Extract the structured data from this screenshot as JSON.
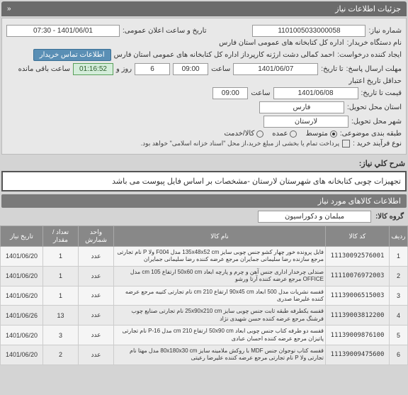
{
  "header": {
    "title": "جزئیات اطلاعات نیاز",
    "chev": "«"
  },
  "info": {
    "need_no_lbl": "شماره نیاز:",
    "need_no": "1101005033000058",
    "ann_lbl": "تاریخ و ساعت اعلان عمومی:",
    "ann_val": "1401/06/01 - 07:30",
    "org_lbl": "نام دستگاه خریدار:",
    "org_val": "اداره کل کتابخانه های عمومی استان فارس",
    "req_lbl": "ایجاد کننده درخواست:",
    "req_val": "احمد  کمالی دشت ارژنه  کارپرداز اداره کل کتابخانه های عمومی استان فارس",
    "contact_btn": "اطلاعات تماس خریدار",
    "deadline_lbl": "مهلت ارسال پاسخ:",
    "deadline_ta": "تا تاریخ:",
    "deadline_date": "1401/06/07",
    "deadline_time_lbl": "ساعت",
    "deadline_time": "09:00",
    "days_lbl": "روز و",
    "days_val": "6",
    "remain_lbl": "ساعت باقی مانده",
    "remain_val": "01:16:52",
    "valid_lbl": "حداقل تاریخ اعتبار",
    "valid_sub": "قیمت تا تاریخ:",
    "valid_date": "1401/06/08",
    "valid_time": "09:00",
    "prov_lbl": "استان محل تحویل:",
    "prov_val": "فارس",
    "city_lbl": "شهر محل تحویل:",
    "city_val": "لارستان",
    "cat_lbl": "طبقه بندی موضوعی:",
    "cat_opts": [
      {
        "label": "متوسط",
        "sel": true
      },
      {
        "label": "عمده",
        "sel": false
      },
      {
        "label": "کالا/خدمت",
        "sel": false
      }
    ],
    "proc_lbl": "نوع فرآیند خرید :",
    "pay_note": "پرداخت تمام یا بخشی از مبلغ خرید،از محل \"اسناد خزانه اسلامی\" خواهد بود."
  },
  "desc": {
    "lbl": "شرح کلي نياز:",
    "text": "تجهیزات چوبی کتابخانه های شهرستان لارستان -مشخصات بر اساس فایل پیوست می باشد"
  },
  "items_hdr": "اطلاعات کالاهای مورد نیاز",
  "group": {
    "lbl": "گروه کالا:",
    "val": "مبلمان و دکوراسیون"
  },
  "table": {
    "cols": [
      "ردیف",
      "کد کالا",
      "نام کالا",
      "واحد شمارش",
      "تعداد / مقدار",
      "تاریخ نیاز"
    ],
    "rows": [
      {
        "n": "1",
        "code": "11130092576001",
        "name": "فایل پرونده خور چهار کشو جنس چوبی سایز 135x48x52 cm مدل F004 ولا P نام تجارتی مرجع سازنده رضا سلیمانی جمایران مرجع عرضه کننده رضا سلیمانی جمایران",
        "unit": "عدد",
        "qty": "1",
        "date": "1401/06/20"
      },
      {
        "n": "2",
        "code": "11110076972003",
        "name": "صندلی چرخدار اداری جنس آهن و چرم و پارچه ابعاد 50x60 cm ارتفاع 105 cm مدل OFFICE مرجع عرضه کننده آرتا ورشو",
        "unit": "عدد",
        "qty": "1",
        "date": "1401/06/20"
      },
      {
        "n": "3",
        "code": "11139006515003",
        "name": "قفسه نشریات مدل 500 ابعاد 90x45 cm ارتفاع 210 cm نام تجارتی کتیبه مرجع عرضه کننده علیرضا صدری",
        "unit": "عدد",
        "qty": "1",
        "date": "1401/06/20"
      },
      {
        "n": "4",
        "code": "11139003812200",
        "name": "قفسه یکطرفه طبقه ثابت جنس چوبی سایز 25x90x210 cm نام تجارتی صنایع چوب فرشنگ مرجع عرضه کننده حسن شهیدی نژاد",
        "unit": "عدد",
        "qty": "13",
        "date": "1401/06/26"
      },
      {
        "n": "5",
        "code": "11139009876100",
        "name": "قفسه دو طرفه کتاب جنس چوبی ابعاد 50x90 cm ارتفاع 210 cm مدل P-16 نام تجارتی پاتیزان مرجع عرضه کننده احسان عبادی",
        "unit": "عدد",
        "qty": "3",
        "date": "1401/06/20"
      },
      {
        "n": "6",
        "code": "11139009475600",
        "name": "قفسه کتاب نوجوان جنس MDF با روکش ملامینه سایز 80x180x30 cm مدل مهتا نام تجارتی ولا P نام تجارتی مرجع عرضه کننده علیرضا رعیتی",
        "unit": "عدد",
        "qty": "2",
        "date": "1401/06/20"
      }
    ]
  },
  "colors": {
    "hdr_bg": "#6b6b6b",
    "panel_bg": "#e8e8e8",
    "btn_bg": "#5a8fb5",
    "th_bg": "#888888",
    "countdown_bg": "#d4edda"
  }
}
